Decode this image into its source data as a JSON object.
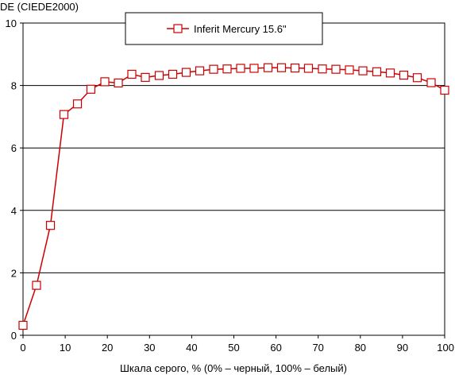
{
  "chart_data": {
    "type": "line",
    "title": "",
    "ylabel": "DE (CIEDE2000)",
    "xlabel": "Шкала серого, % (0% – черный, 100% – белый)",
    "xlim": [
      0,
      100
    ],
    "ylim": [
      0,
      10
    ],
    "xticks": [
      "0",
      "10",
      "20",
      "30",
      "40",
      "50",
      "60",
      "70",
      "80",
      "90",
      "100"
    ],
    "yticks": [
      "0",
      "2",
      "4",
      "6",
      "8",
      "10"
    ],
    "grid": "horizontal",
    "legend_position": "top-center",
    "series": [
      {
        "name": "Inferit Mercury 15.6\"",
        "color": "#cc0000",
        "marker": "square-open",
        "x": [
          0,
          3.2,
          6.5,
          9.7,
          12.9,
          16.1,
          19.4,
          22.6,
          25.8,
          29.0,
          32.3,
          35.5,
          38.7,
          41.9,
          45.2,
          48.4,
          51.6,
          54.8,
          58.1,
          61.3,
          64.5,
          67.7,
          71.0,
          74.2,
          77.4,
          80.6,
          83.9,
          87.1,
          90.3,
          93.5,
          96.8,
          100
        ],
        "y": [
          0.32,
          1.6,
          3.52,
          7.07,
          7.41,
          7.88,
          8.12,
          8.08,
          8.36,
          8.26,
          8.32,
          8.36,
          8.42,
          8.47,
          8.52,
          8.53,
          8.55,
          8.55,
          8.57,
          8.57,
          8.56,
          8.55,
          8.53,
          8.52,
          8.5,
          8.47,
          8.44,
          8.4,
          8.33,
          8.25,
          8.09,
          7.85
        ]
      }
    ]
  }
}
